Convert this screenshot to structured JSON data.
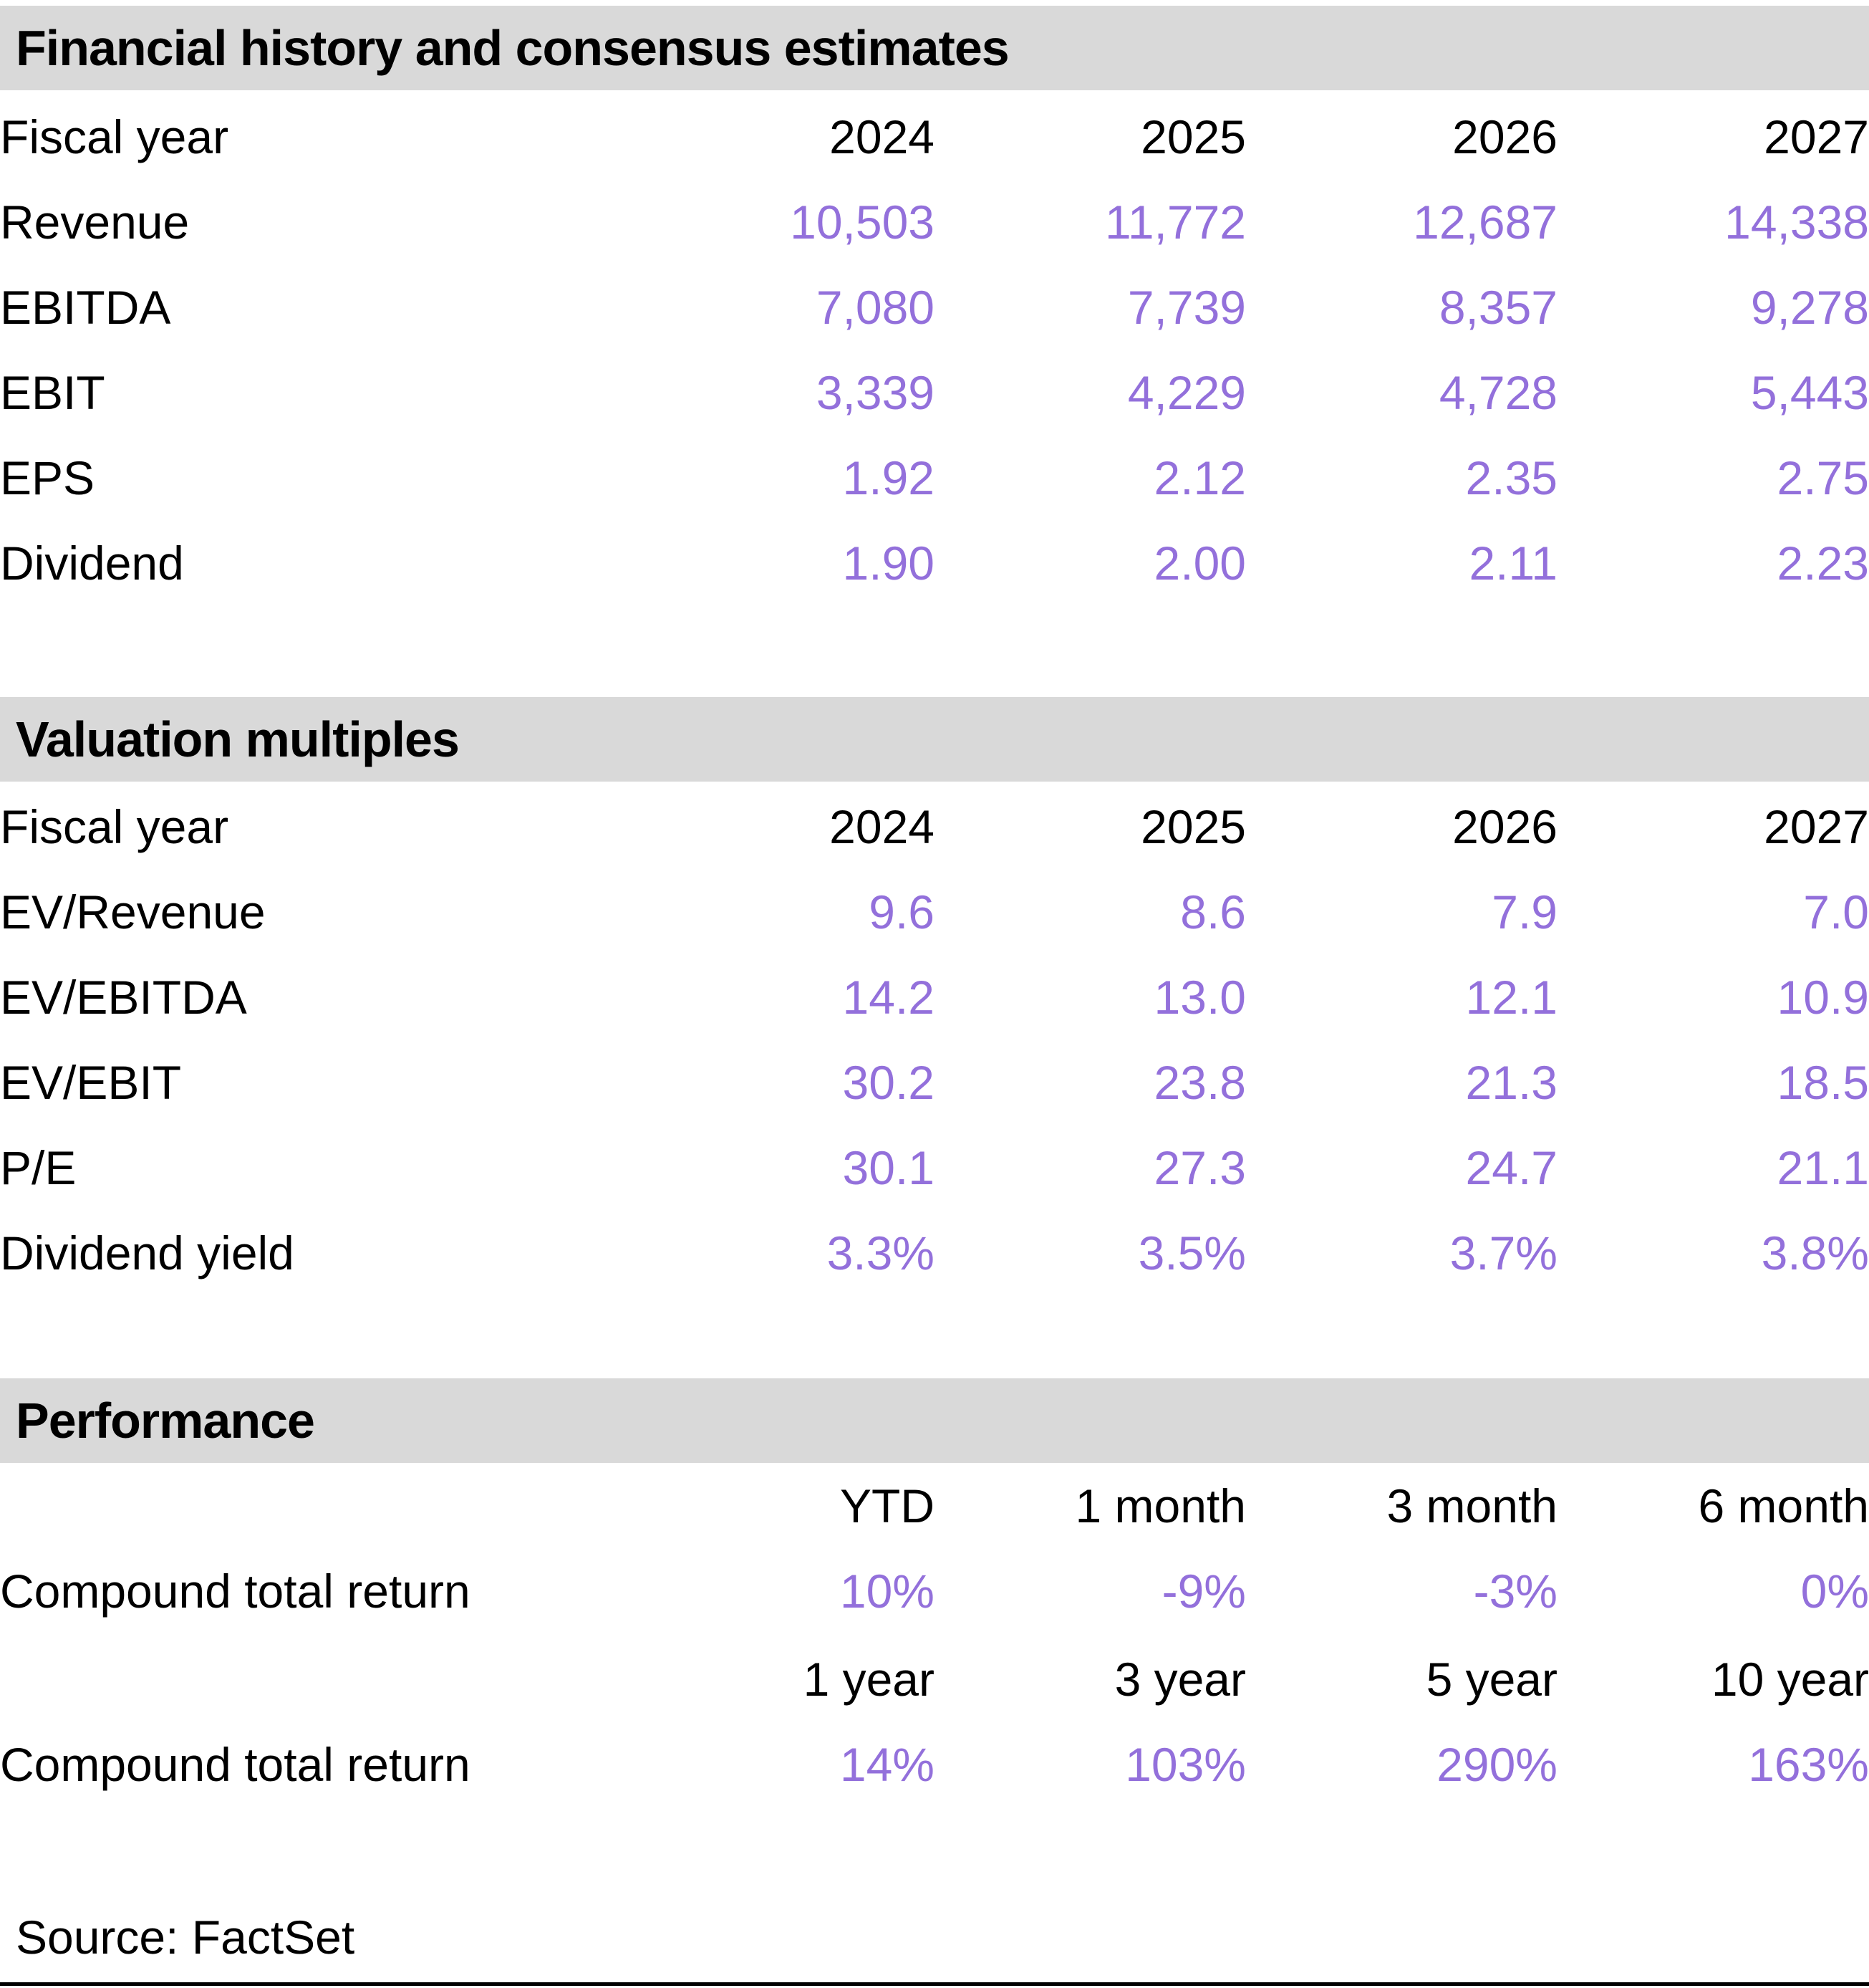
{
  "colors": {
    "data_purple": "#9370DB",
    "band_gray": "#D9D9D9",
    "text_black": "#000000"
  },
  "financial_history": {
    "title": "Financial history and consensus estimates",
    "header": {
      "label": "Fiscal year",
      "cols": [
        "2024",
        "2025",
        "2026",
        "2027"
      ]
    },
    "rows": [
      {
        "label": "Revenue",
        "values": [
          "10,503",
          "11,772",
          "12,687",
          "14,338"
        ]
      },
      {
        "label": "EBITDA",
        "values": [
          "7,080",
          "7,739",
          "8,357",
          "9,278"
        ]
      },
      {
        "label": "EBIT",
        "values": [
          "3,339",
          "4,229",
          "4,728",
          "5,443"
        ]
      },
      {
        "label": "EPS",
        "values": [
          "1.92",
          "2.12",
          "2.35",
          "2.75"
        ]
      },
      {
        "label": "Dividend",
        "values": [
          "1.90",
          "2.00",
          "2.11",
          "2.23"
        ]
      }
    ]
  },
  "valuation_multiples": {
    "title": "Valuation multiples",
    "header": {
      "label": "Fiscal year",
      "cols": [
        "2024",
        "2025",
        "2026",
        "2027"
      ]
    },
    "rows": [
      {
        "label": "EV/Revenue",
        "values": [
          "9.6",
          "8.6",
          "7.9",
          "7.0"
        ]
      },
      {
        "label": "EV/EBITDA",
        "values": [
          "14.2",
          "13.0",
          "12.1",
          "10.9"
        ]
      },
      {
        "label": "EV/EBIT",
        "values": [
          "30.2",
          "23.8",
          "21.3",
          "18.5"
        ]
      },
      {
        "label": "P/E",
        "values": [
          "30.1",
          "27.3",
          "24.7",
          "21.1"
        ]
      },
      {
        "label": "Dividend yield",
        "values": [
          "3.3%",
          "3.5%",
          "3.7%",
          "3.8%"
        ]
      }
    ]
  },
  "performance": {
    "title": "Performance",
    "groups": [
      {
        "header_cols": [
          "YTD",
          "1 month",
          "3 month",
          "6 month"
        ],
        "row": {
          "label": "Compound total return",
          "values": [
            "10%",
            "-9%",
            "-3%",
            "0%"
          ]
        }
      },
      {
        "header_cols": [
          "1 year",
          "3 year",
          "5 year",
          "10 year"
        ],
        "row": {
          "label": "Compound total return",
          "values": [
            "14%",
            "103%",
            "290%",
            "163%"
          ]
        }
      }
    ]
  },
  "footer": {
    "source": "Source: FactSet"
  }
}
